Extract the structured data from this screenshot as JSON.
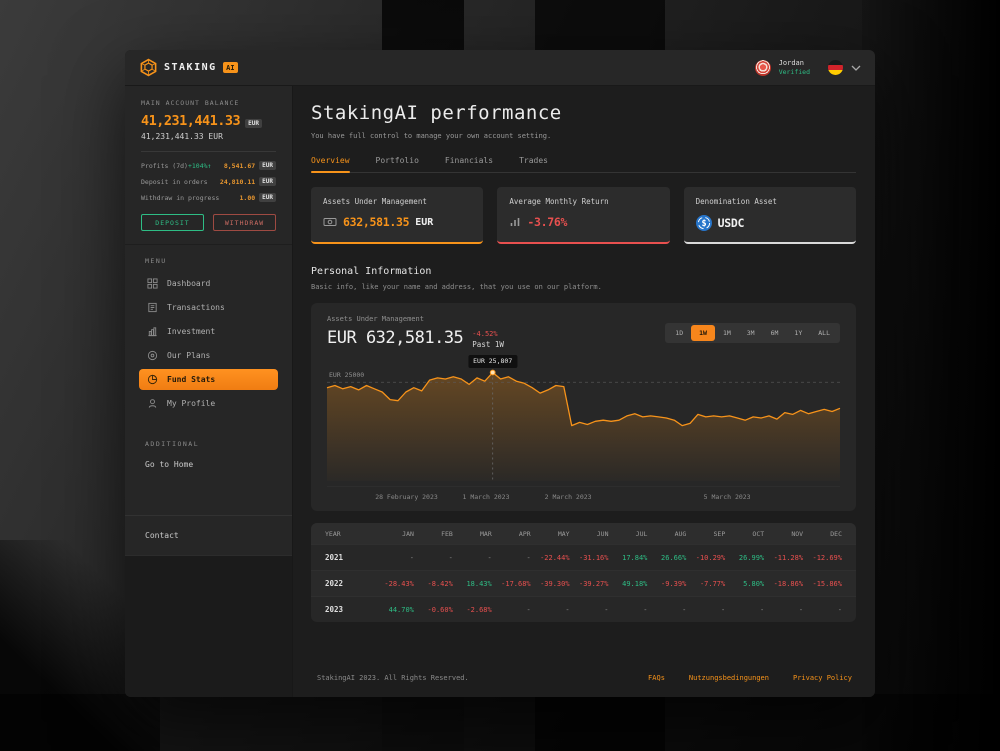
{
  "topbar": {
    "brand_name": "STAKING",
    "brand_badge": "AI",
    "user_name": "Jordan",
    "user_status": "Verified"
  },
  "sidebar": {
    "balance_label": "MAIN ACCOUNT BALANCE",
    "balance_primary": "41,231,441.33",
    "currency_badge": "EUR",
    "balance_secondary": "41,231,441.33 EUR",
    "stats": [
      {
        "label": "Profits (7d)",
        "delta": "+104%↑",
        "value": "8,541.67",
        "currency": "EUR"
      },
      {
        "label": "Deposit in orders",
        "delta": "",
        "value": "24,810.11",
        "currency": "EUR"
      },
      {
        "label": "Withdraw in progress",
        "delta": "",
        "value": "1.00",
        "currency": "EUR"
      }
    ],
    "deposit_label": "DEPOSIT",
    "withdraw_label": "WITHDRAW",
    "menu_label": "MENU",
    "menu": [
      {
        "label": "Dashboard",
        "icon": "dashboard-icon",
        "active": false
      },
      {
        "label": "Transactions",
        "icon": "transactions-icon",
        "active": false
      },
      {
        "label": "Investment",
        "icon": "investment-icon",
        "active": false
      },
      {
        "label": "Our Plans",
        "icon": "our-plans-icon",
        "active": false
      },
      {
        "label": "Fund Stats",
        "icon": "fund-stats-icon",
        "active": true
      },
      {
        "label": "My Profile",
        "icon": "my-profile-icon",
        "active": false
      }
    ],
    "additional_label": "ADDITIONAL",
    "go_home_label": "Go to Home",
    "contact_label": "Contact"
  },
  "main": {
    "title": "StakingAI performance",
    "subtitle": "You have full control to manage your own account setting.",
    "tabs": [
      {
        "label": "Overview",
        "active": true
      },
      {
        "label": "Portfolio",
        "active": false
      },
      {
        "label": "Financials",
        "active": false
      },
      {
        "label": "Trades",
        "active": false
      }
    ],
    "cards": [
      {
        "label": "Assets Under Management",
        "value": "632,581.35",
        "suffix": "EUR",
        "icon": "cash-icon",
        "accent": "#f7931a",
        "value_color": "#f7931a"
      },
      {
        "label": "Average Monthly Return",
        "value": "-3.76%",
        "suffix": "",
        "icon": "bar-chart-icon",
        "accent": "#e8504f",
        "value_color": "#e8504f"
      },
      {
        "label": "Denomination Asset",
        "value": "USDC",
        "suffix": "",
        "icon": "usdc-icon",
        "accent": "#d9d9d9",
        "value_color": "#f1f1f1"
      }
    ],
    "section_title": "Personal Information",
    "section_subtitle": "Basic info, like your name and address, that you use on our platform."
  },
  "chart_card": {
    "label": "Assets Under Management",
    "value": "EUR 632,581.35",
    "change": "-4.52%",
    "period": "Past 1W",
    "ranges": [
      "1D",
      "1W",
      "1M",
      "3M",
      "6M",
      "1Y",
      "ALL"
    ],
    "active_range": "1W"
  },
  "chart_data": {
    "type": "area",
    "title": "Assets Under Management",
    "unit": "EUR",
    "line_color": "#f7931a",
    "ylim": [
      16800,
      26600
    ],
    "gridline": {
      "value": 25000,
      "label": "EUR 25000"
    },
    "highlight": {
      "index": 21,
      "value": 25807,
      "label": "EUR 25,807"
    },
    "x_axis_labels": [
      {
        "label": "28 February 2023",
        "x_pct": 15.5
      },
      {
        "label": "1 March 2023",
        "x_pct": 31
      },
      {
        "label": "2 March 2023",
        "x_pct": 47
      },
      {
        "label": "5 March 2023",
        "x_pct": 78
      }
    ],
    "values": [
      24550,
      24730,
      24460,
      24640,
      24370,
      24730,
      24460,
      24190,
      23560,
      23470,
      24190,
      24550,
      24280,
      25180,
      25360,
      25270,
      25450,
      25270,
      24820,
      25360,
      25090,
      25807,
      25270,
      25450,
      25090,
      24910,
      24550,
      24100,
      24370,
      24730,
      24640,
      21400,
      21670,
      21490,
      21760,
      21850,
      21760,
      21850,
      22210,
      22390,
      22120,
      22210,
      22120,
      22030,
      21850,
      21400,
      21580,
      22330,
      22120,
      22210,
      22120,
      22210,
      22030,
      21850,
      22120,
      22030,
      22210,
      21940,
      22480,
      22330,
      22660,
      22390,
      22570,
      22750,
      22570,
      22840
    ]
  },
  "table": {
    "headers": [
      "YEAR",
      "JAN",
      "FEB",
      "MAR",
      "APR",
      "MAY",
      "JUN",
      "JUL",
      "AUG",
      "SEP",
      "OCT",
      "NOV",
      "DEC"
    ],
    "rows": [
      {
        "year": "2021",
        "cells": [
          "-",
          "-",
          "-",
          "-",
          "-22.44%",
          "-31.16%",
          "17.84%",
          "26.66%",
          "-10.29%",
          "26.99%",
          "-11.28%",
          "-12.69%"
        ]
      },
      {
        "year": "2022",
        "cells": [
          "-28.43%",
          "-8.42%",
          "18.43%",
          "-17.68%",
          "-39.30%",
          "-39.27%",
          "49.18%",
          "-9.39%",
          "-7.77%",
          "5.80%",
          "-18.86%",
          "-15.86%"
        ]
      },
      {
        "year": "2023",
        "cells": [
          "44.70%",
          "-0.60%",
          "-2.68%",
          "-",
          "-",
          "-",
          "-",
          "-",
          "-",
          "-",
          "-",
          "-"
        ]
      }
    ]
  },
  "footer": {
    "copyright": "StakingAI 2023. All Rights Reserved.",
    "links": [
      "FAQs",
      "Nutzungsbedingungen",
      "Privacy Policy"
    ]
  },
  "colors": {
    "accent_orange": "#f7931a",
    "positive_green": "#2ebd85",
    "negative_red": "#e8504f",
    "usdc_blue": "#2775ca"
  }
}
